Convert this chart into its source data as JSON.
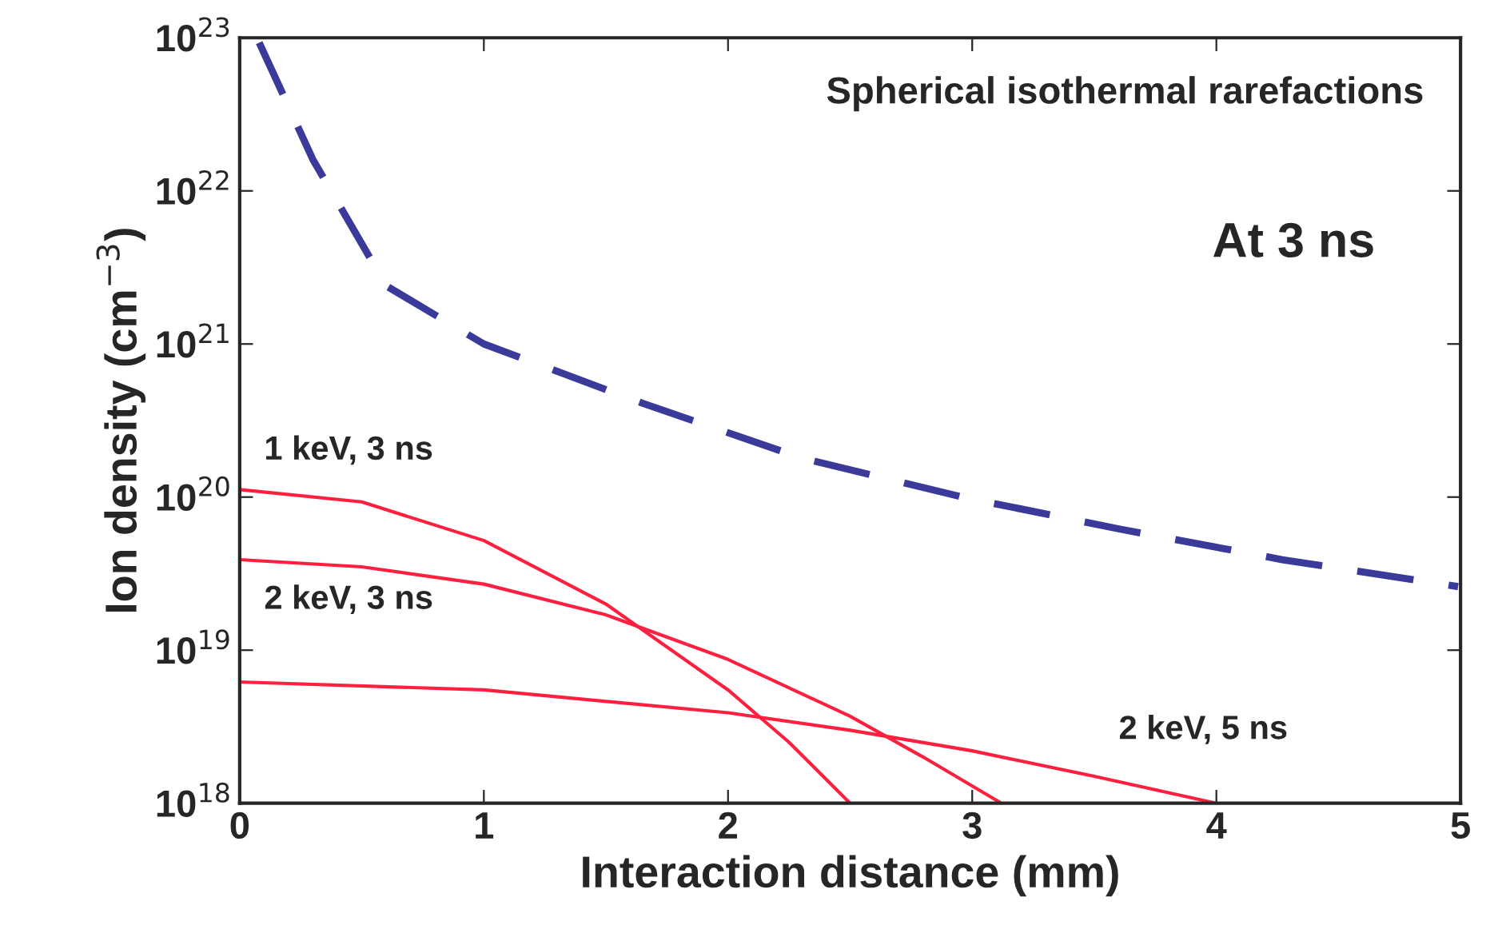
{
  "chart_data": {
    "type": "line",
    "xlabel": "Interaction distance (mm)",
    "ylabel": "Ion density (cm$^{−3}$)",
    "log": true,
    "xlim": [
      0,
      5
    ],
    "xticks": [
      0,
      1,
      2,
      3,
      4,
      5
    ],
    "ylim": [
      1e+18,
      1e+23
    ],
    "yticks": [
      {
        "value": 1e+18,
        "label": "10$^{18}$"
      },
      {
        "value": 1e+19,
        "label": "10$^{19}$"
      },
      {
        "value": 1e+20,
        "label": "10$^{20}$"
      },
      {
        "value": 1e+21,
        "label": "10$^{21}$"
      },
      {
        "value": 1e+22,
        "label": "10$^{22}$"
      },
      {
        "value": 1e+23,
        "label": "10$^{23}$"
      }
    ],
    "grid": false,
    "legend": false,
    "series": [
      {
        "color": "#3a3a9a",
        "line_style": "dashed",
        "x": [
          0.08,
          0.3,
          0.6,
          1.0,
          1.65,
          2.3,
          2.96,
          3.6,
          4.27,
          4.99
        ],
        "values": [
          9.3e+22,
          1.6e+22,
          2.4e+21,
          1e+21,
          4.1e+20,
          1.8e+20,
          1e+20,
          6.2e+19,
          3.9e+19,
          2.6e+19
        ]
      },
      {
        "name": "1 keV, 3 ns",
        "color": "#ff2040",
        "line_style": "solid",
        "x": [
          0,
          0.5,
          1,
          1.5,
          2,
          2.25,
          2.5
        ],
        "values": [
          1.12e+20,
          9.3e+19,
          5.2e+19,
          2e+19,
          5.5e+18,
          2.5e+18,
          1e+18
        ]
      },
      {
        "name": "2 keV, 3 ns",
        "color": "#ff2040",
        "line_style": "solid",
        "x": [
          0,
          0.5,
          1,
          1.5,
          2,
          2.5,
          2.8,
          3.12
        ],
        "values": [
          3.9e+19,
          3.5e+19,
          2.7e+19,
          1.7e+19,
          8.7e+18,
          3.7e+18,
          2e+18,
          1e+18
        ]
      },
      {
        "name": "2 keV, 5 ns",
        "color": "#ff2040",
        "line_style": "solid",
        "x": [
          0,
          1,
          2,
          2.5,
          3,
          3.5,
          4
        ],
        "values": [
          6.2e+18,
          5.5e+18,
          3.9e+18,
          3e+18,
          2.2e+18,
          1.5e+18,
          1e+18
        ]
      }
    ],
    "annotations": [
      "Spherical isothermal rarefactions",
      "At 3 ns"
    ]
  }
}
